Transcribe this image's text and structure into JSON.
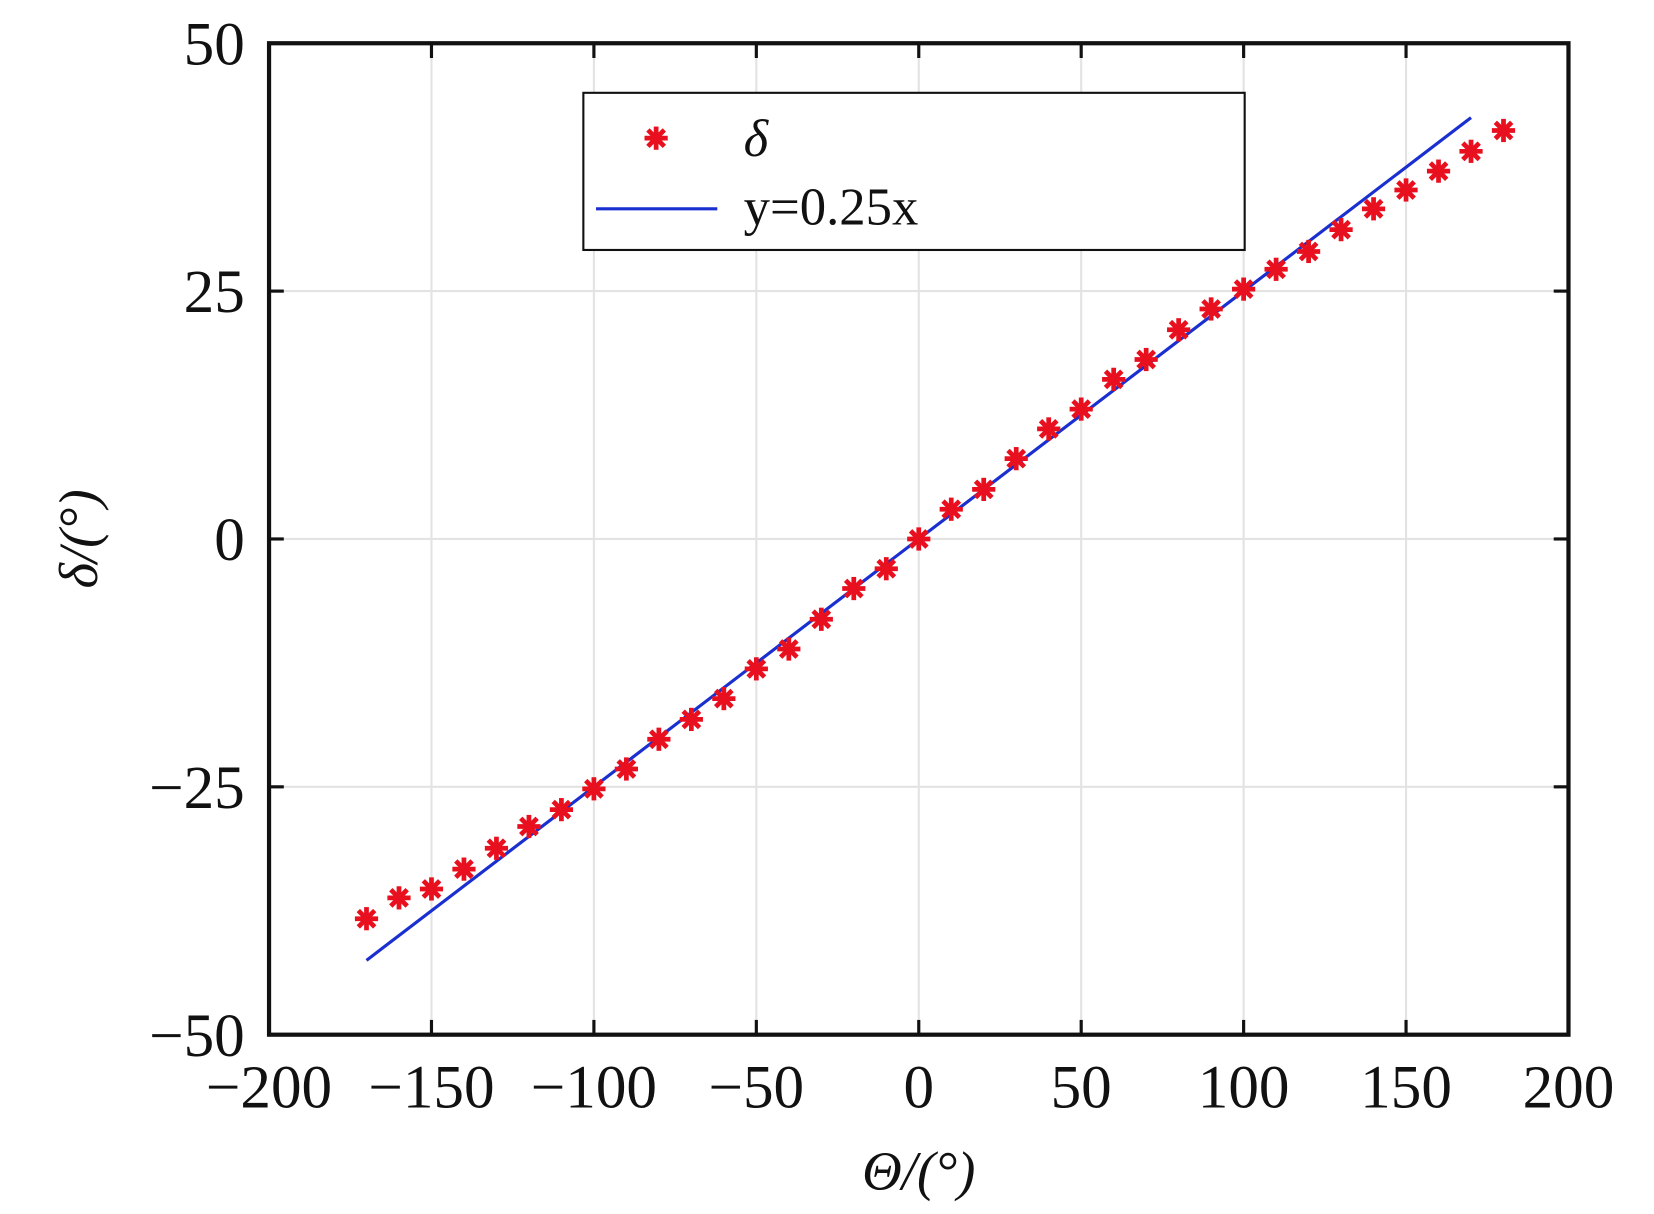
{
  "chart_data": {
    "type": "scatter",
    "title": "",
    "xlabel": "Θ/(°)",
    "ylabel": "δ/(°)",
    "xlim": [
      -200,
      200
    ],
    "ylim": [
      -50,
      50
    ],
    "xticks": [
      -200,
      -150,
      -100,
      -50,
      0,
      50,
      100,
      150,
      200
    ],
    "yticks": [
      -50,
      -25,
      0,
      25,
      50
    ],
    "xtick_labels": [
      "−200",
      "−150",
      "−100",
      "−50",
      "0",
      "50",
      "100",
      "150",
      "200"
    ],
    "ytick_labels": [
      "−50",
      "−25",
      "0",
      "25",
      "50"
    ],
    "grid": true,
    "legend_position": "top-center",
    "series": [
      {
        "name": "δ",
        "kind": "scatter",
        "marker": "asterisk",
        "color": "#e8101e",
        "x": [
          -170,
          -160,
          -150,
          -140,
          -130,
          -120,
          -110,
          -100,
          -90,
          -80,
          -70,
          -60,
          -50,
          -40,
          -30,
          -20,
          -10,
          0,
          10,
          20,
          30,
          40,
          50,
          60,
          70,
          80,
          90,
          100,
          110,
          120,
          130,
          140,
          150,
          160,
          170,
          180
        ],
        "y": [
          -38.3,
          -36.2,
          -35.3,
          -33.3,
          -31.2,
          -29.0,
          -27.3,
          -25.2,
          -23.2,
          -20.2,
          -18.2,
          -16.1,
          -13.1,
          -11.1,
          -8.1,
          -5.0,
          -3.0,
          0,
          3.0,
          5.0,
          8.1,
          11.1,
          13.1,
          16.1,
          18.1,
          21.1,
          23.2,
          25.2,
          27.2,
          29.0,
          31.2,
          33.3,
          35.2,
          37.1,
          39.1,
          41.2
        ]
      },
      {
        "name": "y=0.25x",
        "kind": "line",
        "color": "#1a2fd0",
        "slope": 0.25,
        "x_range": [
          -170,
          170
        ]
      }
    ]
  }
}
